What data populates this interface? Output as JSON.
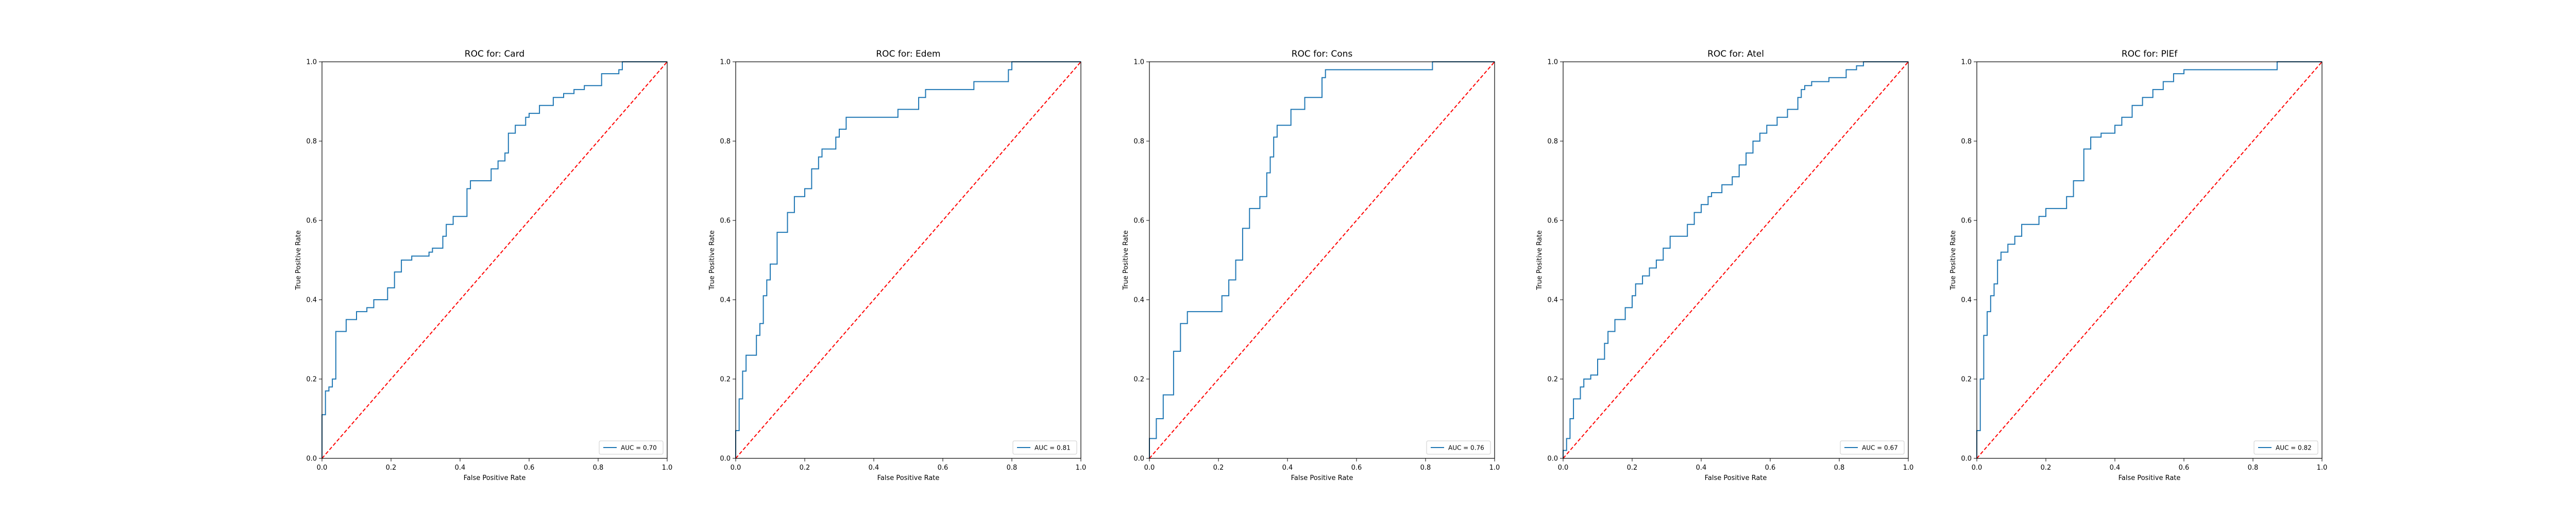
{
  "figure": {
    "background": "#ffffff"
  },
  "style": {
    "roc_color": "#1f77b4",
    "diag_color": "#ff0000",
    "frame_color": "#000000"
  },
  "chart_data": [
    {
      "type": "line",
      "title": "ROC for: Card",
      "xlabel": "False Positive Rate",
      "ylabel": "True Positive Rate",
      "xlim": [
        0,
        1
      ],
      "ylim": [
        0,
        1
      ],
      "xticks": [
        "0.0",
        "0.2",
        "0.4",
        "0.6",
        "0.8",
        "1.0"
      ],
      "yticks": [
        "0.0",
        "0.2",
        "0.4",
        "0.6",
        "0.8",
        "1.0"
      ],
      "legend_position": "lower-right",
      "series": [
        {
          "name": "AUC = 0.70",
          "kind": "roc",
          "x": [
            0.0,
            0.0,
            0.01,
            0.01,
            0.02,
            0.02,
            0.03,
            0.03,
            0.04,
            0.04,
            0.07,
            0.07,
            0.1,
            0.1,
            0.13,
            0.13,
            0.15,
            0.15,
            0.19,
            0.19,
            0.21,
            0.21,
            0.23,
            0.23,
            0.26,
            0.26,
            0.31,
            0.31,
            0.32,
            0.32,
            0.35,
            0.35,
            0.36,
            0.36,
            0.38,
            0.38,
            0.42,
            0.42,
            0.43,
            0.43,
            0.49,
            0.49,
            0.51,
            0.51,
            0.53,
            0.53,
            0.54,
            0.54,
            0.56,
            0.56,
            0.59,
            0.59,
            0.6,
            0.6,
            0.63,
            0.63,
            0.67,
            0.67,
            0.7,
            0.7,
            0.73,
            0.73,
            0.76,
            0.76,
            0.81,
            0.81,
            0.86,
            0.86,
            0.87,
            0.87,
            1.0
          ],
          "y": [
            0.0,
            0.11,
            0.11,
            0.17,
            0.17,
            0.18,
            0.18,
            0.2,
            0.2,
            0.32,
            0.32,
            0.35,
            0.35,
            0.37,
            0.37,
            0.38,
            0.38,
            0.4,
            0.4,
            0.43,
            0.43,
            0.47,
            0.47,
            0.5,
            0.5,
            0.51,
            0.51,
            0.52,
            0.52,
            0.53,
            0.53,
            0.56,
            0.56,
            0.59,
            0.59,
            0.61,
            0.61,
            0.68,
            0.68,
            0.7,
            0.7,
            0.73,
            0.73,
            0.75,
            0.75,
            0.77,
            0.77,
            0.82,
            0.82,
            0.84,
            0.84,
            0.86,
            0.86,
            0.87,
            0.87,
            0.89,
            0.89,
            0.91,
            0.91,
            0.92,
            0.92,
            0.93,
            0.93,
            0.94,
            0.94,
            0.97,
            0.97,
            0.98,
            0.98,
            1.0,
            1.0
          ]
        },
        {
          "name": "",
          "kind": "diagonal",
          "x": [
            0,
            1
          ],
          "y": [
            0,
            1
          ]
        }
      ]
    },
    {
      "type": "line",
      "title": "ROC for: Edem",
      "xlabel": "False Positive Rate",
      "ylabel": "True Positive Rate",
      "xlim": [
        0,
        1
      ],
      "ylim": [
        0,
        1
      ],
      "xticks": [
        "0.0",
        "0.2",
        "0.4",
        "0.6",
        "0.8",
        "1.0"
      ],
      "yticks": [
        "0.0",
        "0.2",
        "0.4",
        "0.6",
        "0.8",
        "1.0"
      ],
      "legend_position": "lower-right",
      "series": [
        {
          "name": "AUC = 0.81",
          "kind": "roc",
          "x": [
            0.0,
            0.0,
            0.01,
            0.01,
            0.02,
            0.02,
            0.03,
            0.03,
            0.06,
            0.06,
            0.07,
            0.07,
            0.08,
            0.08,
            0.09,
            0.09,
            0.1,
            0.1,
            0.12,
            0.12,
            0.15,
            0.15,
            0.17,
            0.17,
            0.2,
            0.2,
            0.22,
            0.22,
            0.24,
            0.24,
            0.25,
            0.25,
            0.29,
            0.29,
            0.3,
            0.3,
            0.32,
            0.32,
            0.47,
            0.47,
            0.53,
            0.53,
            0.55,
            0.55,
            0.69,
            0.69,
            0.79,
            0.79,
            0.8,
            0.8,
            1.0
          ],
          "y": [
            0.0,
            0.07,
            0.07,
            0.15,
            0.15,
            0.22,
            0.22,
            0.26,
            0.26,
            0.31,
            0.31,
            0.34,
            0.34,
            0.41,
            0.41,
            0.45,
            0.45,
            0.49,
            0.49,
            0.57,
            0.57,
            0.62,
            0.62,
            0.66,
            0.66,
            0.68,
            0.68,
            0.73,
            0.73,
            0.76,
            0.76,
            0.78,
            0.78,
            0.81,
            0.81,
            0.83,
            0.83,
            0.86,
            0.86,
            0.88,
            0.88,
            0.91,
            0.91,
            0.93,
            0.93,
            0.95,
            0.95,
            0.98,
            0.98,
            1.0,
            1.0
          ]
        },
        {
          "name": "",
          "kind": "diagonal",
          "x": [
            0,
            1
          ],
          "y": [
            0,
            1
          ]
        }
      ]
    },
    {
      "type": "line",
      "title": "ROC for: Cons",
      "xlabel": "False Positive Rate",
      "ylabel": "True Positive Rate",
      "xlim": [
        0,
        1
      ],
      "ylim": [
        0,
        1
      ],
      "xticks": [
        "0.0",
        "0.2",
        "0.4",
        "0.6",
        "0.8",
        "1.0"
      ],
      "yticks": [
        "0.0",
        "0.2",
        "0.4",
        "0.6",
        "0.8",
        "1.0"
      ],
      "legend_position": "lower-right",
      "series": [
        {
          "name": "AUC = 0.76",
          "kind": "roc",
          "x": [
            0.0,
            0.0,
            0.02,
            0.02,
            0.04,
            0.04,
            0.07,
            0.07,
            0.09,
            0.09,
            0.11,
            0.11,
            0.21,
            0.21,
            0.23,
            0.23,
            0.25,
            0.25,
            0.27,
            0.27,
            0.29,
            0.29,
            0.32,
            0.32,
            0.34,
            0.34,
            0.35,
            0.35,
            0.36,
            0.36,
            0.37,
            0.37,
            0.41,
            0.41,
            0.45,
            0.45,
            0.5,
            0.5,
            0.51,
            0.51,
            0.82,
            0.82,
            1.0
          ],
          "y": [
            0.0,
            0.05,
            0.05,
            0.1,
            0.1,
            0.16,
            0.16,
            0.27,
            0.27,
            0.34,
            0.34,
            0.37,
            0.37,
            0.41,
            0.41,
            0.45,
            0.45,
            0.5,
            0.5,
            0.58,
            0.58,
            0.63,
            0.63,
            0.66,
            0.66,
            0.72,
            0.72,
            0.76,
            0.76,
            0.81,
            0.81,
            0.84,
            0.84,
            0.88,
            0.88,
            0.91,
            0.91,
            0.96,
            0.96,
            0.98,
            0.98,
            1.0,
            1.0
          ]
        },
        {
          "name": "",
          "kind": "diagonal",
          "x": [
            0,
            1
          ],
          "y": [
            0,
            1
          ]
        }
      ]
    },
    {
      "type": "line",
      "title": "ROC for: Atel",
      "xlabel": "False Positive Rate",
      "ylabel": "True Positive Rate",
      "xlim": [
        0,
        1
      ],
      "ylim": [
        0,
        1
      ],
      "xticks": [
        "0.0",
        "0.2",
        "0.4",
        "0.6",
        "0.8",
        "1.0"
      ],
      "yticks": [
        "0.0",
        "0.2",
        "0.4",
        "0.6",
        "0.8",
        "1.0"
      ],
      "legend_position": "lower-right",
      "series": [
        {
          "name": "AUC = 0.67",
          "kind": "roc",
          "x": [
            0.0,
            0.0,
            0.01,
            0.01,
            0.02,
            0.02,
            0.03,
            0.03,
            0.05,
            0.05,
            0.06,
            0.06,
            0.08,
            0.08,
            0.1,
            0.1,
            0.12,
            0.12,
            0.13,
            0.13,
            0.15,
            0.15,
            0.18,
            0.18,
            0.2,
            0.2,
            0.21,
            0.21,
            0.23,
            0.23,
            0.25,
            0.25,
            0.27,
            0.27,
            0.29,
            0.29,
            0.31,
            0.31,
            0.36,
            0.36,
            0.38,
            0.38,
            0.4,
            0.4,
            0.42,
            0.42,
            0.43,
            0.43,
            0.46,
            0.46,
            0.49,
            0.49,
            0.51,
            0.51,
            0.53,
            0.53,
            0.55,
            0.55,
            0.57,
            0.57,
            0.59,
            0.59,
            0.62,
            0.62,
            0.65,
            0.65,
            0.68,
            0.68,
            0.69,
            0.69,
            0.7,
            0.7,
            0.72,
            0.72,
            0.77,
            0.77,
            0.82,
            0.82,
            0.85,
            0.85,
            0.87,
            0.87,
            0.93,
            0.93,
            1.0
          ],
          "y": [
            0.0,
            0.02,
            0.02,
            0.05,
            0.05,
            0.1,
            0.1,
            0.15,
            0.15,
            0.18,
            0.18,
            0.2,
            0.2,
            0.21,
            0.21,
            0.25,
            0.25,
            0.29,
            0.29,
            0.32,
            0.32,
            0.35,
            0.35,
            0.38,
            0.38,
            0.41,
            0.41,
            0.44,
            0.44,
            0.46,
            0.46,
            0.48,
            0.48,
            0.5,
            0.5,
            0.53,
            0.53,
            0.56,
            0.56,
            0.59,
            0.59,
            0.62,
            0.62,
            0.64,
            0.64,
            0.66,
            0.66,
            0.67,
            0.67,
            0.69,
            0.69,
            0.71,
            0.71,
            0.74,
            0.74,
            0.77,
            0.77,
            0.8,
            0.8,
            0.82,
            0.82,
            0.84,
            0.84,
            0.86,
            0.86,
            0.88,
            0.88,
            0.91,
            0.91,
            0.93,
            0.93,
            0.94,
            0.94,
            0.95,
            0.95,
            0.96,
            0.96,
            0.98,
            0.98,
            0.99,
            0.99,
            1.0,
            1.0,
            1.0,
            1.0
          ]
        },
        {
          "name": "",
          "kind": "diagonal",
          "x": [
            0,
            1
          ],
          "y": [
            0,
            1
          ]
        }
      ]
    },
    {
      "type": "line",
      "title": "ROC for: PlEf",
      "xlabel": "False Positive Rate",
      "ylabel": "True Positive Rate",
      "xlim": [
        0,
        1
      ],
      "ylim": [
        0,
        1
      ],
      "xticks": [
        "0.0",
        "0.2",
        "0.4",
        "0.6",
        "0.8",
        "1.0"
      ],
      "yticks": [
        "0.0",
        "0.2",
        "0.4",
        "0.6",
        "0.8",
        "1.0"
      ],
      "legend_position": "lower-right",
      "series": [
        {
          "name": "AUC = 0.82",
          "kind": "roc",
          "x": [
            0.0,
            0.0,
            0.01,
            0.01,
            0.02,
            0.02,
            0.03,
            0.03,
            0.04,
            0.04,
            0.05,
            0.05,
            0.06,
            0.06,
            0.07,
            0.07,
            0.09,
            0.09,
            0.11,
            0.11,
            0.13,
            0.13,
            0.18,
            0.18,
            0.2,
            0.2,
            0.26,
            0.26,
            0.28,
            0.28,
            0.31,
            0.31,
            0.33,
            0.33,
            0.36,
            0.36,
            0.4,
            0.4,
            0.42,
            0.42,
            0.45,
            0.45,
            0.48,
            0.48,
            0.51,
            0.51,
            0.54,
            0.54,
            0.57,
            0.57,
            0.6,
            0.6,
            0.87,
            0.87,
            1.0
          ],
          "y": [
            0.0,
            0.07,
            0.07,
            0.2,
            0.2,
            0.31,
            0.31,
            0.37,
            0.37,
            0.41,
            0.41,
            0.44,
            0.44,
            0.5,
            0.5,
            0.52,
            0.52,
            0.54,
            0.54,
            0.56,
            0.56,
            0.59,
            0.59,
            0.61,
            0.61,
            0.63,
            0.63,
            0.66,
            0.66,
            0.7,
            0.7,
            0.78,
            0.78,
            0.81,
            0.81,
            0.82,
            0.82,
            0.84,
            0.84,
            0.86,
            0.86,
            0.89,
            0.89,
            0.91,
            0.91,
            0.93,
            0.93,
            0.95,
            0.95,
            0.97,
            0.97,
            0.98,
            0.98,
            1.0,
            1.0
          ]
        },
        {
          "name": "",
          "kind": "diagonal",
          "x": [
            0,
            1
          ],
          "y": [
            0,
            1
          ]
        }
      ]
    }
  ]
}
